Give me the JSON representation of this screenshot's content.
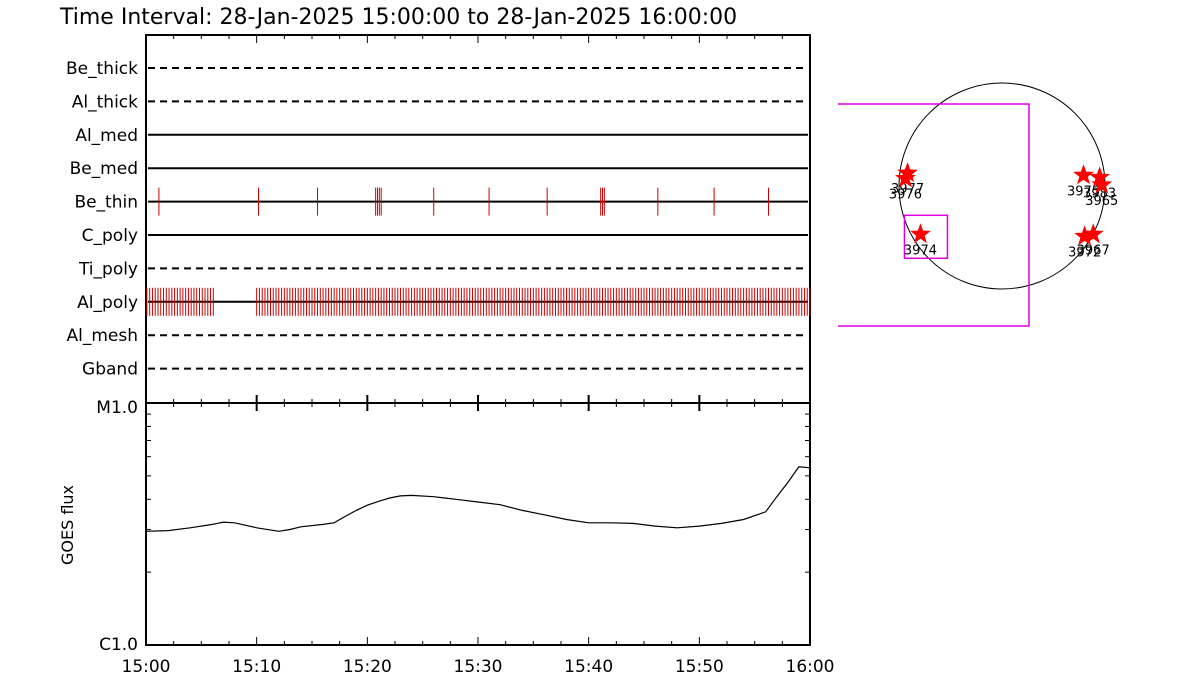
{
  "title": "Time Interval: 28-Jan-2025 15:00:00 to 28-Jan-2025 16:00:00",
  "colors": {
    "axis": "#000000",
    "exposure_tick": "#cc0000",
    "fov_box": "#e000e0",
    "star": "#ff0000"
  },
  "chart_data": [
    {
      "type": "event-timeline",
      "x_axis": {
        "min": "15:00",
        "max": "16:00",
        "ticks": [
          "15:00",
          "15:10",
          "15:20",
          "15:30",
          "15:40",
          "15:50",
          "16:00"
        ]
      },
      "series": [
        {
          "name": "Be_thick",
          "style": "dashed",
          "events": []
        },
        {
          "name": "Al_thick",
          "style": "dashed",
          "events": []
        },
        {
          "name": "Al_med",
          "style": "solid",
          "events": []
        },
        {
          "name": "Be_med",
          "style": "solid",
          "events": []
        },
        {
          "name": "Be_thin",
          "style": "solid",
          "events": [
            "15:01:10",
            "15:10:10",
            "15:15:30",
            "15:20:45",
            "15:20:55",
            "15:21:05",
            "15:21:15",
            "15:26:00",
            "15:31:00",
            "15:36:15",
            "15:41:05",
            "15:41:15",
            "15:41:25",
            "15:46:15",
            "15:51:20",
            "15:56:15"
          ]
        },
        {
          "name": "C_poly",
          "style": "solid",
          "events": []
        },
        {
          "name": "Ti_poly",
          "style": "dashed",
          "events": []
        },
        {
          "name": "Al_poly",
          "style": "solid",
          "segments": [
            {
              "start": "15:00:05",
              "end": "15:06:15",
              "spacing_s": 15
            },
            {
              "start": "15:10:00",
              "end": "16:00:00",
              "spacing_s": 15
            }
          ]
        },
        {
          "name": "Al_mesh",
          "style": "dashed",
          "events": []
        },
        {
          "name": "Gband",
          "style": "dashed",
          "events": []
        }
      ]
    },
    {
      "type": "line",
      "ylabel": "GOES flux",
      "y_axis": {
        "scale": "log",
        "tick_labels": [
          "C1.0",
          "M1.0"
        ]
      },
      "x": [
        "15:00",
        "15:02",
        "15:04",
        "15:06",
        "15:07",
        "15:08",
        "15:10",
        "15:12",
        "15:13",
        "15:14",
        "15:16",
        "15:17",
        "15:18",
        "15:19",
        "15:20",
        "15:21",
        "15:22",
        "15:23",
        "15:24",
        "15:26",
        "15:27",
        "15:28",
        "15:30",
        "15:32",
        "15:34",
        "15:36",
        "15:38",
        "15:40",
        "15:42",
        "15:44",
        "15:46",
        "15:48",
        "15:50",
        "15:52",
        "15:54",
        "15:56",
        "15:57",
        "15:58",
        "15:59",
        "16:00"
      ],
      "values": [
        2.95,
        2.97,
        3.05,
        3.15,
        3.22,
        3.2,
        3.05,
        2.95,
        3.0,
        3.08,
        3.15,
        3.2,
        3.4,
        3.6,
        3.78,
        3.92,
        4.05,
        4.13,
        4.15,
        4.1,
        4.05,
        4.0,
        3.9,
        3.8,
        3.6,
        3.45,
        3.3,
        3.2,
        3.2,
        3.18,
        3.1,
        3.05,
        3.1,
        3.18,
        3.3,
        3.55,
        4.1,
        4.7,
        5.45,
        5.4
      ]
    },
    {
      "type": "scatter",
      "name": "solar-disk-map",
      "points": [
        {
          "label": "3977",
          "x": -880,
          "y": 120
        },
        {
          "label": "3976",
          "x": -900,
          "y": 70
        },
        {
          "label": "3974",
          "x": -760,
          "y": -450
        },
        {
          "label": "3975",
          "x": 760,
          "y": 100
        },
        {
          "label": "3983",
          "x": 910,
          "y": 80
        },
        {
          "label": "3965",
          "x": 930,
          "y": 10
        },
        {
          "label": "3972",
          "x": 770,
          "y": -470
        },
        {
          "label": "3967",
          "x": 850,
          "y": -450
        }
      ]
    }
  ]
}
